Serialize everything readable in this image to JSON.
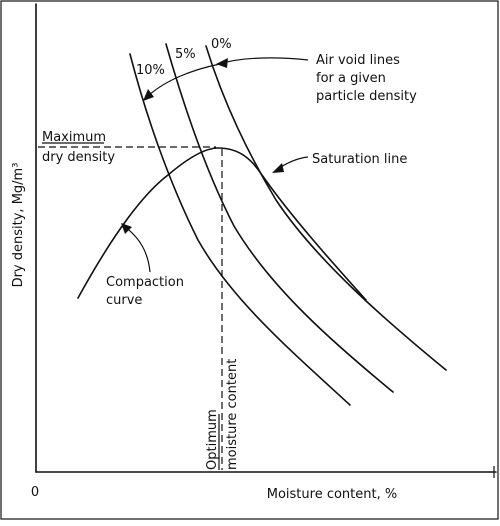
{
  "axes": {
    "y_label": "Dry density, Mg/m³",
    "x_label": "Moisture content, %",
    "origin": "0"
  },
  "annotations": {
    "max_dry_density_line1": "Maximum",
    "max_dry_density_line2": "dry density",
    "optimum_line1": "Optimum",
    "optimum_line2": "moisture content",
    "saturation_line": "Saturation line",
    "air_void_line1": "Air void lines",
    "air_void_line2": "for a given",
    "air_void_line3": "particle density",
    "compaction_line1": "Compaction",
    "compaction_line2": "curve"
  },
  "air_void_labels": {
    "p10": "10%",
    "p5": "5%",
    "p0": "0%"
  }
}
